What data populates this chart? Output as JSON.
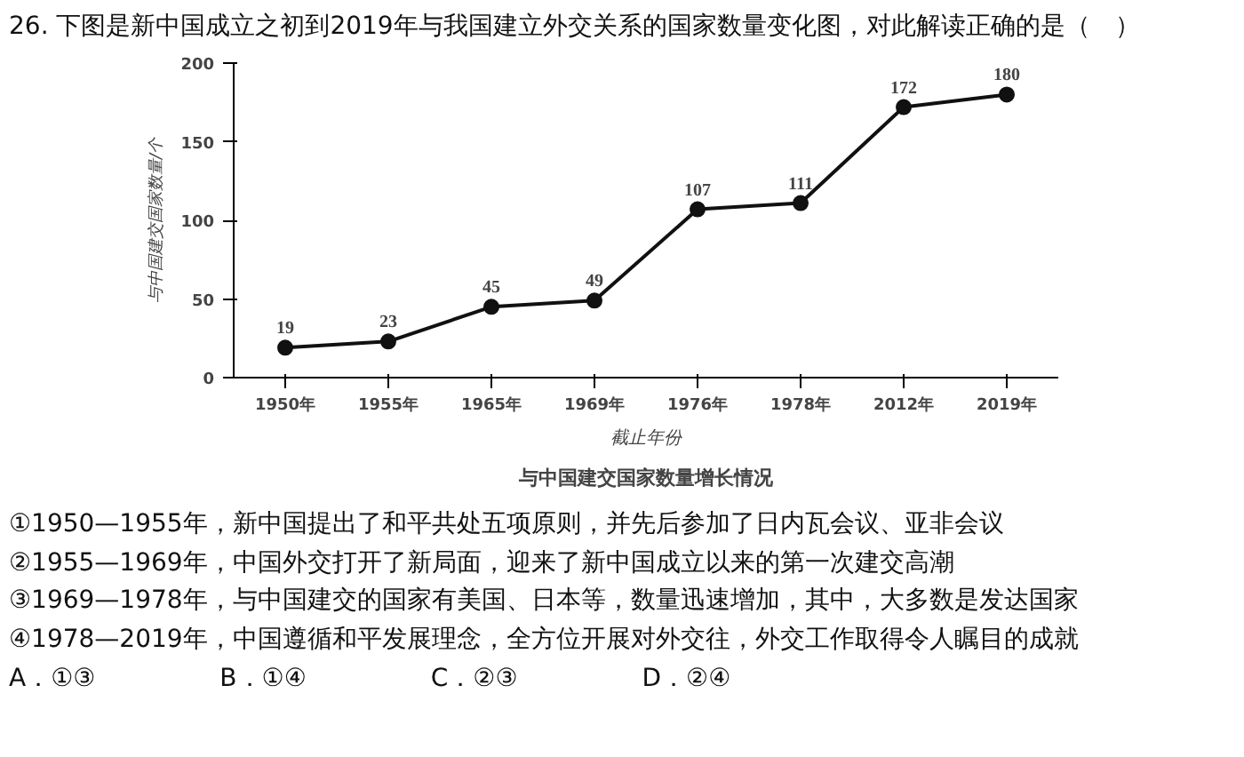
{
  "chart_data": {
    "type": "line",
    "title": "与中国建交国家数量增长情况",
    "xlabel": "截止年份",
    "ylabel": "与中国建交国家数量/个",
    "categories": [
      "1950年",
      "1955年",
      "1965年",
      "1969年",
      "1976年",
      "1978年",
      "2012年",
      "2019年"
    ],
    "series": [
      {
        "color": "#111111",
        "values": [
          19,
          23,
          45,
          49,
          107,
          111,
          172,
          180
        ]
      }
    ],
    "ylim": [
      0,
      200
    ],
    "yticks": [
      0,
      50,
      100,
      150,
      200
    ],
    "grid": false,
    "marker": "circle",
    "line_style": "solid",
    "data_labels": true,
    "annotations": [
      "26. 下图是新中国成立之初到2019年与我国建立外交关系的国家数量变化图，对此解读正确的是（　）",
      "①1950—1955年，新中国提出了和平共处五项原则，并先后参加了日内瓦会议、亚非会议",
      "②1955—1969年，中国外交打开了新局面，迎来了新中国成立以来的第一次建交高潮",
      "③1969—1978年，与中国建交的国家有美国、日本等，数量迅速增加，其中，大多数是发达国家",
      "④1978—2019年，中国遵循和平发展理念，全方位开展对外交往，外交工作取得令人瞩目的成就",
      "A．①③　　　　　B．①④　　　　　C．②③　　　　　D．②④"
    ]
  }
}
